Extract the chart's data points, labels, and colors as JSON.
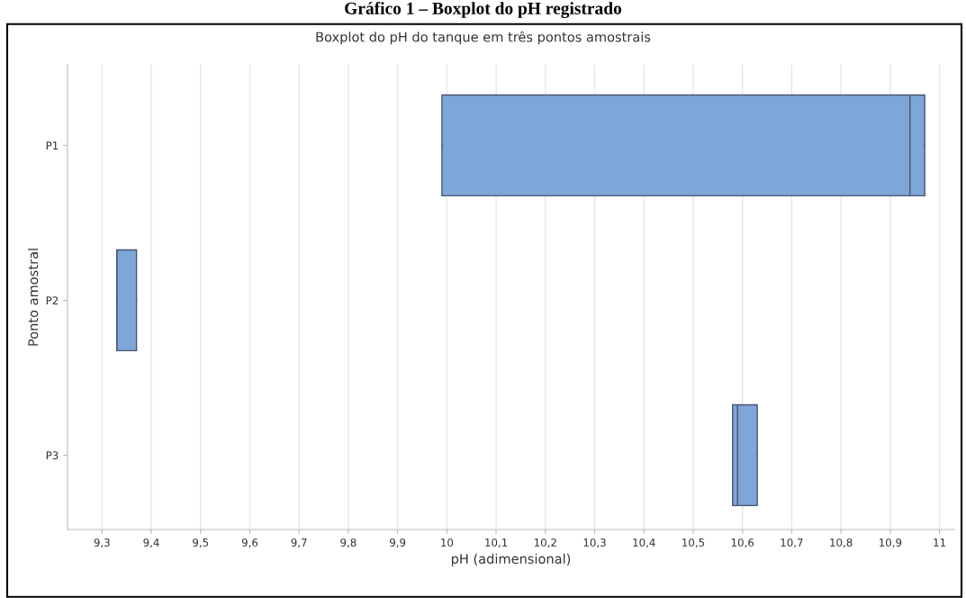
{
  "chart_data": {
    "type": "box",
    "orientation": "horizontal",
    "title": "Gráfico 1 – Boxplot do pH registrado",
    "subtitle": "Boxplot do pH do tanque em três pontos amostrais",
    "xlabel": "pH (adimensional)",
    "ylabel": "Ponto amostral",
    "categories": [
      "P1",
      "P2",
      "P3"
    ],
    "color": "#7ea6d8",
    "boxes": [
      {
        "low": 9.99,
        "q1": 9.99,
        "median": 10.94,
        "q3": 10.97,
        "high": 10.97
      },
      {
        "low": 9.33,
        "q1": 9.33,
        "median": 9.33,
        "q3": 9.37,
        "high": 9.37
      },
      {
        "low": 10.58,
        "q1": 10.58,
        "median": 10.59,
        "q3": 10.63,
        "high": 10.63
      }
    ],
    "xlim": [
      9.23,
      11.03
    ],
    "xticks": [
      {
        "value": 9.3,
        "label": "9,3"
      },
      {
        "value": 9.4,
        "label": "9,4"
      },
      {
        "value": 9.5,
        "label": "9,5"
      },
      {
        "value": 9.6,
        "label": "9,6"
      },
      {
        "value": 9.7,
        "label": "9,7"
      },
      {
        "value": 9.8,
        "label": "9,8"
      },
      {
        "value": 9.9,
        "label": "9,9"
      },
      {
        "value": 10,
        "label": "10"
      },
      {
        "value": 10.1,
        "label": "10,1"
      },
      {
        "value": 10.2,
        "label": "10,2"
      },
      {
        "value": 10.3,
        "label": "10,3"
      },
      {
        "value": 10.4,
        "label": "10,4"
      },
      {
        "value": 10.5,
        "label": "10,5"
      },
      {
        "value": 10.6,
        "label": "10,6"
      },
      {
        "value": 10.7,
        "label": "10,7"
      },
      {
        "value": 10.8,
        "label": "10,8"
      },
      {
        "value": 10.9,
        "label": "10,9"
      },
      {
        "value": 11,
        "label": "11"
      }
    ],
    "grid": "x"
  }
}
